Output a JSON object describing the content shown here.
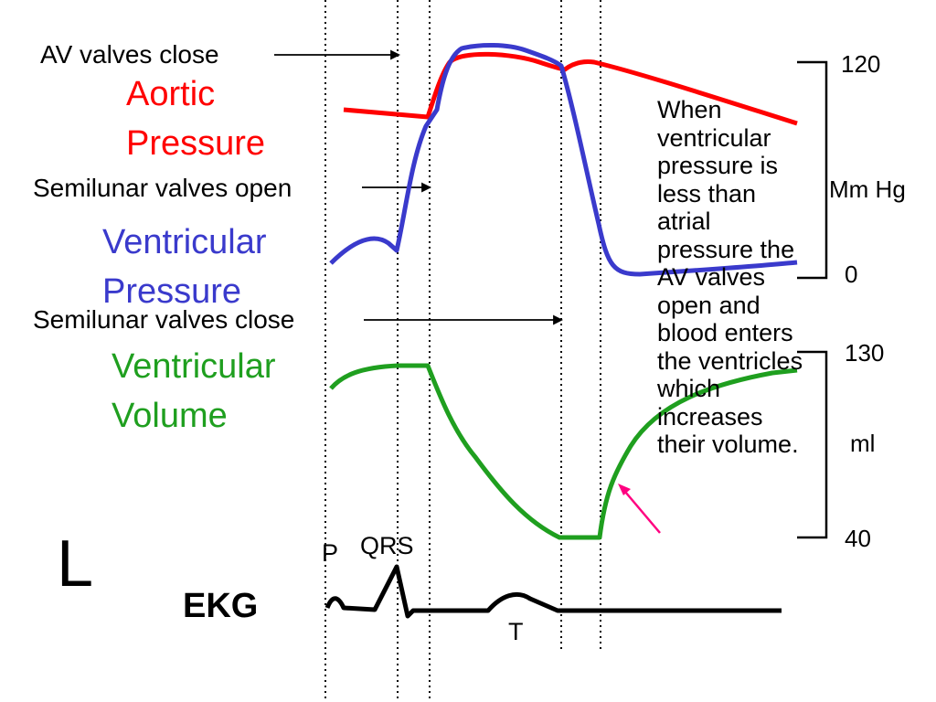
{
  "annotations": {
    "av_close": "AV valves close",
    "semilunar_open": "Semilunar valves open",
    "semilunar_close": "Semilunar valves close"
  },
  "titles": {
    "aortic_line1": "Aortic",
    "aortic_line2": "Pressure",
    "vent_line1": "Ventricular",
    "vent_line2": "Pressure",
    "vol_line1": "Ventricular",
    "vol_line2": "Volume"
  },
  "pressure_axis": {
    "top": "120",
    "unit": "Mm Hg",
    "bottom": "0"
  },
  "volume_axis": {
    "top": "130",
    "unit": "ml",
    "bottom": "40"
  },
  "ekg": {
    "label": "EKG",
    "p": "P",
    "qrs": "QRS",
    "t": "T"
  },
  "side_letter": "L",
  "note_lines": [
    "When",
    "ventricular",
    "pressure is",
    "less than",
    "atrial",
    "pressure the",
    "AV valves",
    "open and",
    "blood enters",
    "the ventricles",
    "which",
    "increases",
    "their volume."
  ],
  "colors": {
    "aortic": "#ff0000",
    "ventricular": "#3a3acc",
    "volume": "#1f9f1f",
    "pointer": "#ff0080"
  }
}
